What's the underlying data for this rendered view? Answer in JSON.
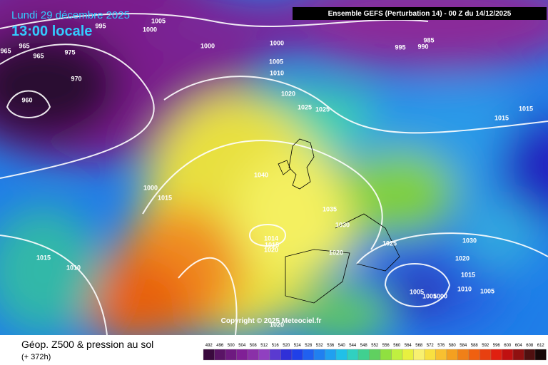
{
  "header": {
    "model_info": "Ensemble GEFS  (Perturbation 14)  -  00 Z du 14/12/2025",
    "date": "Lundi 29 décembre 2025",
    "local_time": "13:00 locale"
  },
  "copyright": "Copyright © 2025 Meteociel.fr",
  "isobar_labels": [
    1005,
    1000,
    995,
    965,
    965,
    965,
    975,
    970,
    960,
    1000,
    1000,
    1005,
    1010,
    1020,
    1025,
    1025,
    995,
    990,
    985,
    1015,
    1015,
    1040,
    1000,
    1015,
    1035,
    1030,
    1014,
    1015,
    1020,
    1020,
    1025,
    1030,
    1020,
    1015,
    1010,
    1005,
    1005,
    1005,
    1000,
    1015,
    1010,
    1020
  ],
  "legend": {
    "title": "Géop. Z500 & pression au sol",
    "range": "(+ 372h)",
    "ticks": [
      492,
      496,
      500,
      504,
      508,
      512,
      516,
      520,
      524,
      528,
      532,
      536,
      540,
      544,
      548,
      552,
      556,
      560,
      564,
      568,
      572,
      576,
      580,
      584,
      588,
      592,
      596,
      600,
      604,
      608,
      612
    ],
    "colors": [
      "#3a0a3e",
      "#5a1466",
      "#6e1a80",
      "#802096",
      "#8a30a8",
      "#9040c0",
      "#5a3ad0",
      "#3030d8",
      "#2040e8",
      "#2060f0",
      "#2080f0",
      "#20a0f0",
      "#20c0e8",
      "#30d0c0",
      "#40d090",
      "#60d060",
      "#90e040",
      "#c0f040",
      "#e8f040",
      "#f8f070",
      "#f8e040",
      "#f8c030",
      "#f4a020",
      "#f08018",
      "#f06010",
      "#e84010",
      "#e02010",
      "#c01010",
      "#901010",
      "#501010",
      "#180808"
    ]
  }
}
